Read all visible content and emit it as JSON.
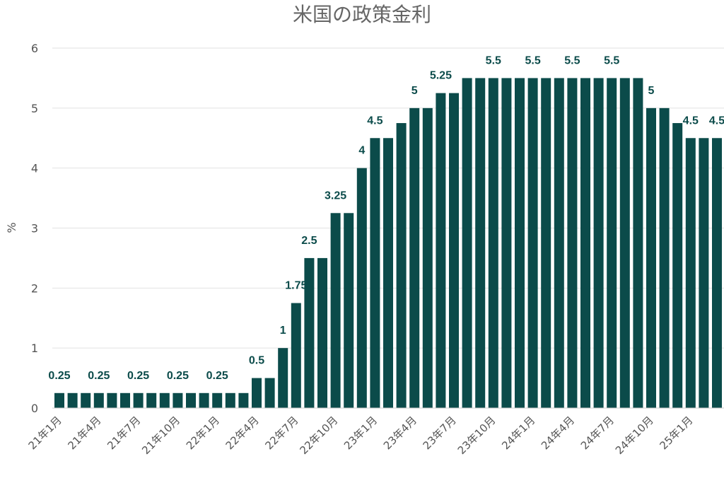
{
  "chart_data": {
    "type": "bar",
    "title": "米国の政策金利",
    "ylabel": "%",
    "xlabel": "",
    "ylim": [
      0,
      6
    ],
    "yticks": [
      "0",
      "1",
      "2",
      "3",
      "4",
      "5",
      "6"
    ],
    "grid": true,
    "legend": "none",
    "colors": {
      "bar": "#0b4b4a",
      "label": "#0b4b4a",
      "grid": "#e2e2e2",
      "text": "#555555",
      "title": "#666666"
    },
    "categories": [
      "21年1月",
      "21年2月",
      "21年3月",
      "21年4月",
      "21年5月",
      "21年6月",
      "21年7月",
      "21年8月",
      "21年9月",
      "21年10月",
      "21年11月",
      "21年12月",
      "22年1月",
      "22年2月",
      "22年3月",
      "22年4月",
      "22年5月",
      "22年6月",
      "22年7月",
      "22年8月",
      "22年9月",
      "22年10月",
      "22年11月",
      "22年12月",
      "23年1月",
      "23年2月",
      "23年3月",
      "23年4月",
      "23年5月",
      "23年6月",
      "23年7月",
      "23年8月",
      "23年9月",
      "23年10月",
      "23年11月",
      "23年12月",
      "24年1月",
      "24年2月",
      "24年3月",
      "24年4月",
      "24年5月",
      "24年6月",
      "24年7月",
      "24年8月",
      "24年9月",
      "24年10月",
      "24年11月",
      "24年12月",
      "25年1月",
      "25年2月",
      "25年3月"
    ],
    "values": [
      0.25,
      0.25,
      0.25,
      0.25,
      0.25,
      0.25,
      0.25,
      0.25,
      0.25,
      0.25,
      0.25,
      0.25,
      0.25,
      0.25,
      0.25,
      0.5,
      0.5,
      1,
      1.75,
      2.5,
      2.5,
      3.25,
      3.25,
      4,
      4.5,
      4.5,
      4.75,
      5,
      5,
      5.25,
      5.25,
      5.5,
      5.5,
      5.5,
      5.5,
      5.5,
      5.5,
      5.5,
      5.5,
      5.5,
      5.5,
      5.5,
      5.5,
      5.5,
      5.5,
      5,
      5,
      4.75,
      4.5,
      4.5,
      4.5
    ],
    "visible_x_ticks": [
      "21年1月",
      "21年4月",
      "21年7月",
      "21年10月",
      "22年1月",
      "22年4月",
      "22年7月",
      "22年10月",
      "23年1月",
      "23年4月",
      "23年7月",
      "23年10月",
      "24年1月",
      "24年4月",
      "24年7月",
      "24年10月",
      "25年1月"
    ],
    "data_labels": [
      {
        "index": 0,
        "text": "0.25"
      },
      {
        "index": 3,
        "text": "0.25"
      },
      {
        "index": 6,
        "text": "0.25"
      },
      {
        "index": 9,
        "text": "0.25"
      },
      {
        "index": 12,
        "text": "0.25"
      },
      {
        "index": 15,
        "text": "0.5"
      },
      {
        "index": 17,
        "text": "1"
      },
      {
        "index": 18,
        "text": "1.75"
      },
      {
        "index": 19,
        "text": "2.5"
      },
      {
        "index": 21,
        "text": "3.25"
      },
      {
        "index": 23,
        "text": "4"
      },
      {
        "index": 24,
        "text": "4.5"
      },
      {
        "index": 27,
        "text": "5"
      },
      {
        "index": 29,
        "text": "5.25"
      },
      {
        "index": 33,
        "text": "5.5"
      },
      {
        "index": 36,
        "text": "5.5"
      },
      {
        "index": 39,
        "text": "5.5"
      },
      {
        "index": 42,
        "text": "5.5"
      },
      {
        "index": 45,
        "text": "5"
      },
      {
        "index": 48,
        "text": "4.5"
      },
      {
        "index": 50,
        "text": "4.5"
      }
    ]
  }
}
